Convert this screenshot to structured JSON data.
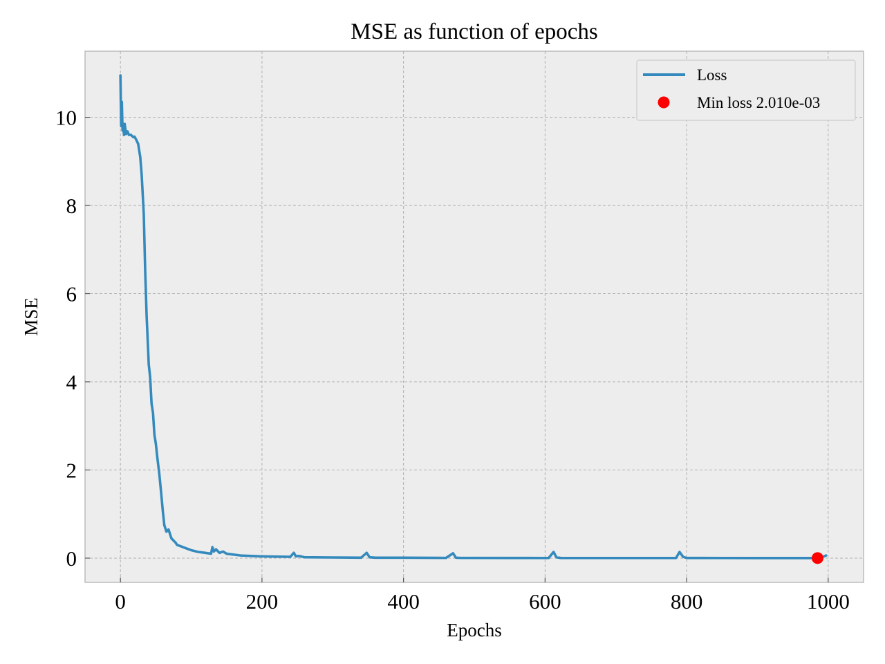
{
  "chart_data": {
    "type": "line",
    "title": "MSE as function of epochs",
    "xlabel": "Epochs",
    "ylabel": "MSE",
    "xlim": [
      -50,
      1050
    ],
    "ylim": [
      -0.55,
      11.5
    ],
    "xticks": [
      0,
      200,
      400,
      600,
      800,
      1000
    ],
    "yticks": [
      0,
      2,
      4,
      6,
      8,
      10
    ],
    "grid": true,
    "legend_position": "top-right",
    "colors": {
      "line": "#348abd",
      "marker": "#ff0000",
      "background": "#ededed"
    },
    "series": [
      {
        "name": "Loss",
        "type": "line",
        "x": [
          0,
          1,
          2,
          3,
          4,
          5,
          6,
          8,
          10,
          12,
          15,
          18,
          20,
          22,
          25,
          28,
          30,
          33,
          35,
          37,
          40,
          42,
          44,
          46,
          48,
          50,
          52,
          55,
          58,
          60,
          62,
          65,
          68,
          70,
          72,
          75,
          78,
          80,
          85,
          90,
          95,
          100,
          110,
          120,
          128,
          130,
          132,
          135,
          140,
          145,
          150,
          170,
          200,
          240,
          245,
          248,
          252,
          260,
          300,
          340,
          348,
          352,
          360,
          400,
          460,
          470,
          474,
          480,
          550,
          605,
          612,
          616,
          622,
          700,
          785,
          790,
          795,
          800,
          850,
          900,
          950,
          985,
          990,
          997
        ],
        "y": [
          10.95,
          9.8,
          10.35,
          9.7,
          9.85,
          9.6,
          9.85,
          9.62,
          9.68,
          9.6,
          9.6,
          9.55,
          9.56,
          9.5,
          9.4,
          9.1,
          8.7,
          7.8,
          6.5,
          5.5,
          4.4,
          4.1,
          3.5,
          3.3,
          2.8,
          2.6,
          2.3,
          1.9,
          1.4,
          1.05,
          0.75,
          0.6,
          0.65,
          0.55,
          0.45,
          0.4,
          0.35,
          0.3,
          0.27,
          0.24,
          0.21,
          0.18,
          0.14,
          0.12,
          0.1,
          0.25,
          0.15,
          0.2,
          0.12,
          0.15,
          0.1,
          0.06,
          0.04,
          0.03,
          0.12,
          0.04,
          0.05,
          0.02,
          0.015,
          0.01,
          0.12,
          0.02,
          0.01,
          0.01,
          0.005,
          0.11,
          0.01,
          0.005,
          0.004,
          0.003,
          0.14,
          0.02,
          0.004,
          0.003,
          0.003,
          0.14,
          0.03,
          0.004,
          0.003,
          0.002,
          0.002,
          0.002,
          0.01,
          0.06
        ]
      },
      {
        "name": "Min loss 2.010e-03",
        "type": "scatter",
        "x": [
          985
        ],
        "y": [
          0.00201
        ]
      }
    ]
  }
}
